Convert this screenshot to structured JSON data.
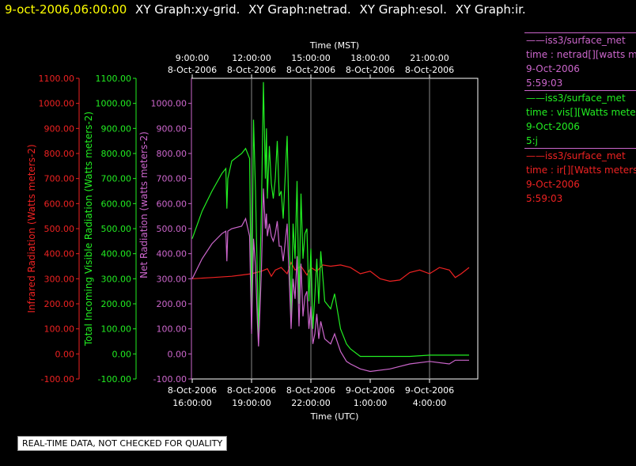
{
  "header": {
    "datetime": "9-oct-2006,06:00:00",
    "titles": [
      "XY Graph:xy-grid.",
      "XY Graph:netrad.",
      "XY Graph:esol.",
      "XY Graph:ir."
    ]
  },
  "legend": [
    {
      "color": "#cc66cc",
      "source": "——iss3/surface_met",
      "desc": "time : netrad[][watts m",
      "date": "9-Oct-2006",
      "time": "5:59:03"
    },
    {
      "color": "#22ee22",
      "source": "——iss3/surface_met",
      "desc": "time : vis[][Watts mete",
      "date": "9-Oct-2006",
      "time": "5:j"
    },
    {
      "color": "#ee2222",
      "source": "——iss3/surface_met",
      "desc": "time : ir[][Watts meters",
      "date": "9-Oct-2006",
      "time": "5:59:03"
    }
  ],
  "qc_notice": "REAL-TIME DATA, NOT CHECKED FOR QUALITY",
  "chart_data": {
    "type": "line",
    "top_axis": {
      "label": "Time (MST)",
      "ticks": [
        {
          "hour": -3,
          "l1": "9:00:00",
          "l2": "8-Oct-2006"
        },
        {
          "hour": 0,
          "l1": "12:00:00",
          "l2": "8-Oct-2006"
        },
        {
          "hour": 3,
          "l1": "15:00:00",
          "l2": "8-Oct-2006"
        },
        {
          "hour": 6,
          "l1": "18:00:00",
          "l2": "8-Oct-2006"
        },
        {
          "hour": 9,
          "l1": "21:00:00",
          "l2": "8-Oct-2006"
        }
      ]
    },
    "bottom_axis": {
      "label": "Time (UTC)",
      "ticks": [
        {
          "hour": -3,
          "l1": "8-Oct-2006",
          "l2": "16:00:00"
        },
        {
          "hour": 0,
          "l1": "8-Oct-2006",
          "l2": "19:00:00"
        },
        {
          "hour": 3,
          "l1": "8-Oct-2006",
          "l2": "22:00:00"
        },
        {
          "hour": 6,
          "l1": "9-Oct-2006",
          "l2": "1:00:00"
        },
        {
          "hour": 9,
          "l1": "9-Oct-2006",
          "l2": "4:00:00"
        }
      ]
    },
    "xlim": [
      -3.0,
      11.2
    ],
    "grid_hours": [
      0,
      3,
      9
    ],
    "y_axes": [
      {
        "label": "Infrared Radiation (Watts meters-2)",
        "color": "#ee2222",
        "ylim": [
          -100,
          1100
        ],
        "ticks": [
          "-100.00",
          "0.00",
          "100.00",
          "200.00",
          "300.00",
          "400.00",
          "500.00",
          "600.00",
          "700.00",
          "800.00",
          "900.00",
          "1000.00",
          "1100.00"
        ]
      },
      {
        "label": "Total Incoming Visible Radiation (Watts meters-2)",
        "color": "#22ee22",
        "ylim": [
          -100,
          1100
        ],
        "ticks": [
          "-100.00",
          "0.00",
          "100.00",
          "200.00",
          "300.00",
          "400.00",
          "500.00",
          "600.00",
          "700.00",
          "800.00",
          "900.00",
          "1000.00",
          "1100.00"
        ]
      },
      {
        "label": "Net Radiation (watts meters-2)",
        "color": "#cc66cc",
        "ylim": [
          -100,
          1100
        ],
        "ticks": [
          "-100.00",
          "0.00",
          "100.00",
          "200.00",
          "300.00",
          "400.00",
          "500.00",
          "600.00",
          "700.00",
          "800.00",
          "900.00",
          "1000.00"
        ]
      }
    ],
    "series": [
      {
        "color": "#ee2222",
        "x": [
          -3.0,
          -2.0,
          -1.0,
          -0.5,
          0.0,
          0.5,
          0.8,
          1.0,
          1.2,
          1.5,
          1.8,
          2.0,
          2.2,
          2.5,
          2.8,
          3.0,
          3.3,
          3.6,
          4.0,
          4.5,
          5.0,
          5.5,
          6.0,
          6.5,
          7.0,
          7.5,
          8.0,
          8.5,
          9.0,
          9.5,
          10.0,
          10.3,
          10.6,
          11.0
        ],
        "y": [
          300,
          305,
          310,
          315,
          320,
          330,
          340,
          310,
          335,
          345,
          320,
          365,
          335,
          350,
          315,
          345,
          330,
          355,
          350,
          355,
          345,
          320,
          330,
          300,
          290,
          295,
          325,
          335,
          320,
          345,
          335,
          305,
          320,
          345
        ]
      },
      {
        "color": "#22ee22",
        "x": [
          -3.0,
          -2.5,
          -2.0,
          -1.5,
          -1.3,
          -1.25,
          -1.2,
          -1.0,
          -0.5,
          -0.3,
          -0.1,
          0.0,
          0.1,
          0.2,
          0.3,
          0.35,
          0.4,
          0.5,
          0.6,
          0.7,
          0.75,
          0.8,
          0.9,
          1.0,
          1.1,
          1.2,
          1.3,
          1.4,
          1.5,
          1.6,
          1.8,
          2.0,
          2.1,
          2.2,
          2.3,
          2.4,
          2.5,
          2.6,
          2.7,
          2.8,
          2.9,
          3.0,
          3.1,
          3.2,
          3.3,
          3.4,
          3.5,
          3.7,
          4.0,
          4.2,
          4.5,
          4.8,
          5.0,
          5.5,
          6.0,
          7.0,
          8.0,
          9.0,
          10.0,
          11.0
        ],
        "y": [
          460,
          570,
          650,
          720,
          740,
          580,
          700,
          770,
          800,
          820,
          780,
          100,
          935,
          650,
          280,
          60,
          250,
          580,
          1085,
          700,
          900,
          620,
          830,
          680,
          620,
          700,
          850,
          630,
          650,
          540,
          870,
          150,
          520,
          380,
          690,
          200,
          640,
          380,
          480,
          500,
          210,
          420,
          100,
          230,
          380,
          200,
          410,
          210,
          180,
          240,
          100,
          40,
          20,
          -10,
          -10,
          -10,
          -10,
          -5,
          -5,
          -5
        ]
      },
      {
        "color": "#cc66cc",
        "x": [
          -3.0,
          -2.5,
          -2.0,
          -1.5,
          -1.3,
          -1.25,
          -1.2,
          -1.0,
          -0.5,
          -0.3,
          -0.1,
          0.0,
          0.1,
          0.2,
          0.3,
          0.35,
          0.4,
          0.5,
          0.6,
          0.7,
          0.75,
          0.8,
          0.9,
          1.0,
          1.1,
          1.2,
          1.3,
          1.4,
          1.5,
          1.6,
          1.8,
          2.0,
          2.1,
          2.2,
          2.3,
          2.4,
          2.5,
          2.6,
          2.7,
          2.8,
          2.9,
          3.0,
          3.1,
          3.2,
          3.3,
          3.4,
          3.5,
          3.7,
          4.0,
          4.2,
          4.5,
          4.8,
          5.0,
          5.5,
          6.0,
          7.0,
          8.0,
          9.0,
          10.0,
          10.3,
          11.0
        ],
        "y": [
          300,
          380,
          440,
          480,
          490,
          370,
          490,
          500,
          510,
          540,
          470,
          80,
          460,
          350,
          120,
          30,
          120,
          340,
          660,
          500,
          560,
          470,
          520,
          470,
          450,
          480,
          530,
          430,
          430,
          370,
          520,
          100,
          300,
          220,
          390,
          110,
          360,
          150,
          230,
          250,
          100,
          190,
          40,
          80,
          160,
          60,
          130,
          60,
          40,
          80,
          10,
          -30,
          -40,
          -60,
          -70,
          -60,
          -40,
          -30,
          -40,
          -25,
          -25
        ]
      }
    ]
  }
}
